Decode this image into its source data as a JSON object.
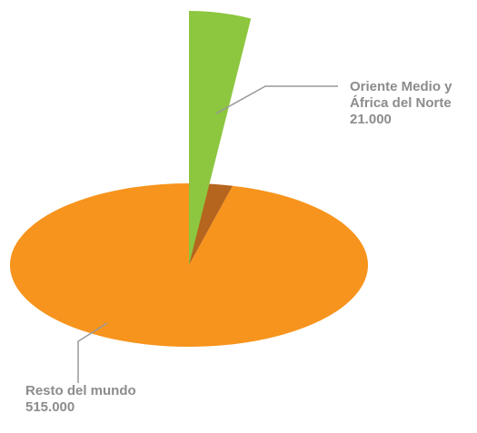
{
  "chart_data": {
    "type": "pie",
    "categories": [
      "Oriente Medio y África del Norte",
      "Resto del mundo"
    ],
    "values": [
      21000,
      515000
    ],
    "value_labels": [
      "21.000",
      "515.000"
    ],
    "colors": [
      "#8dc63f",
      "#f7941d"
    ]
  }
}
